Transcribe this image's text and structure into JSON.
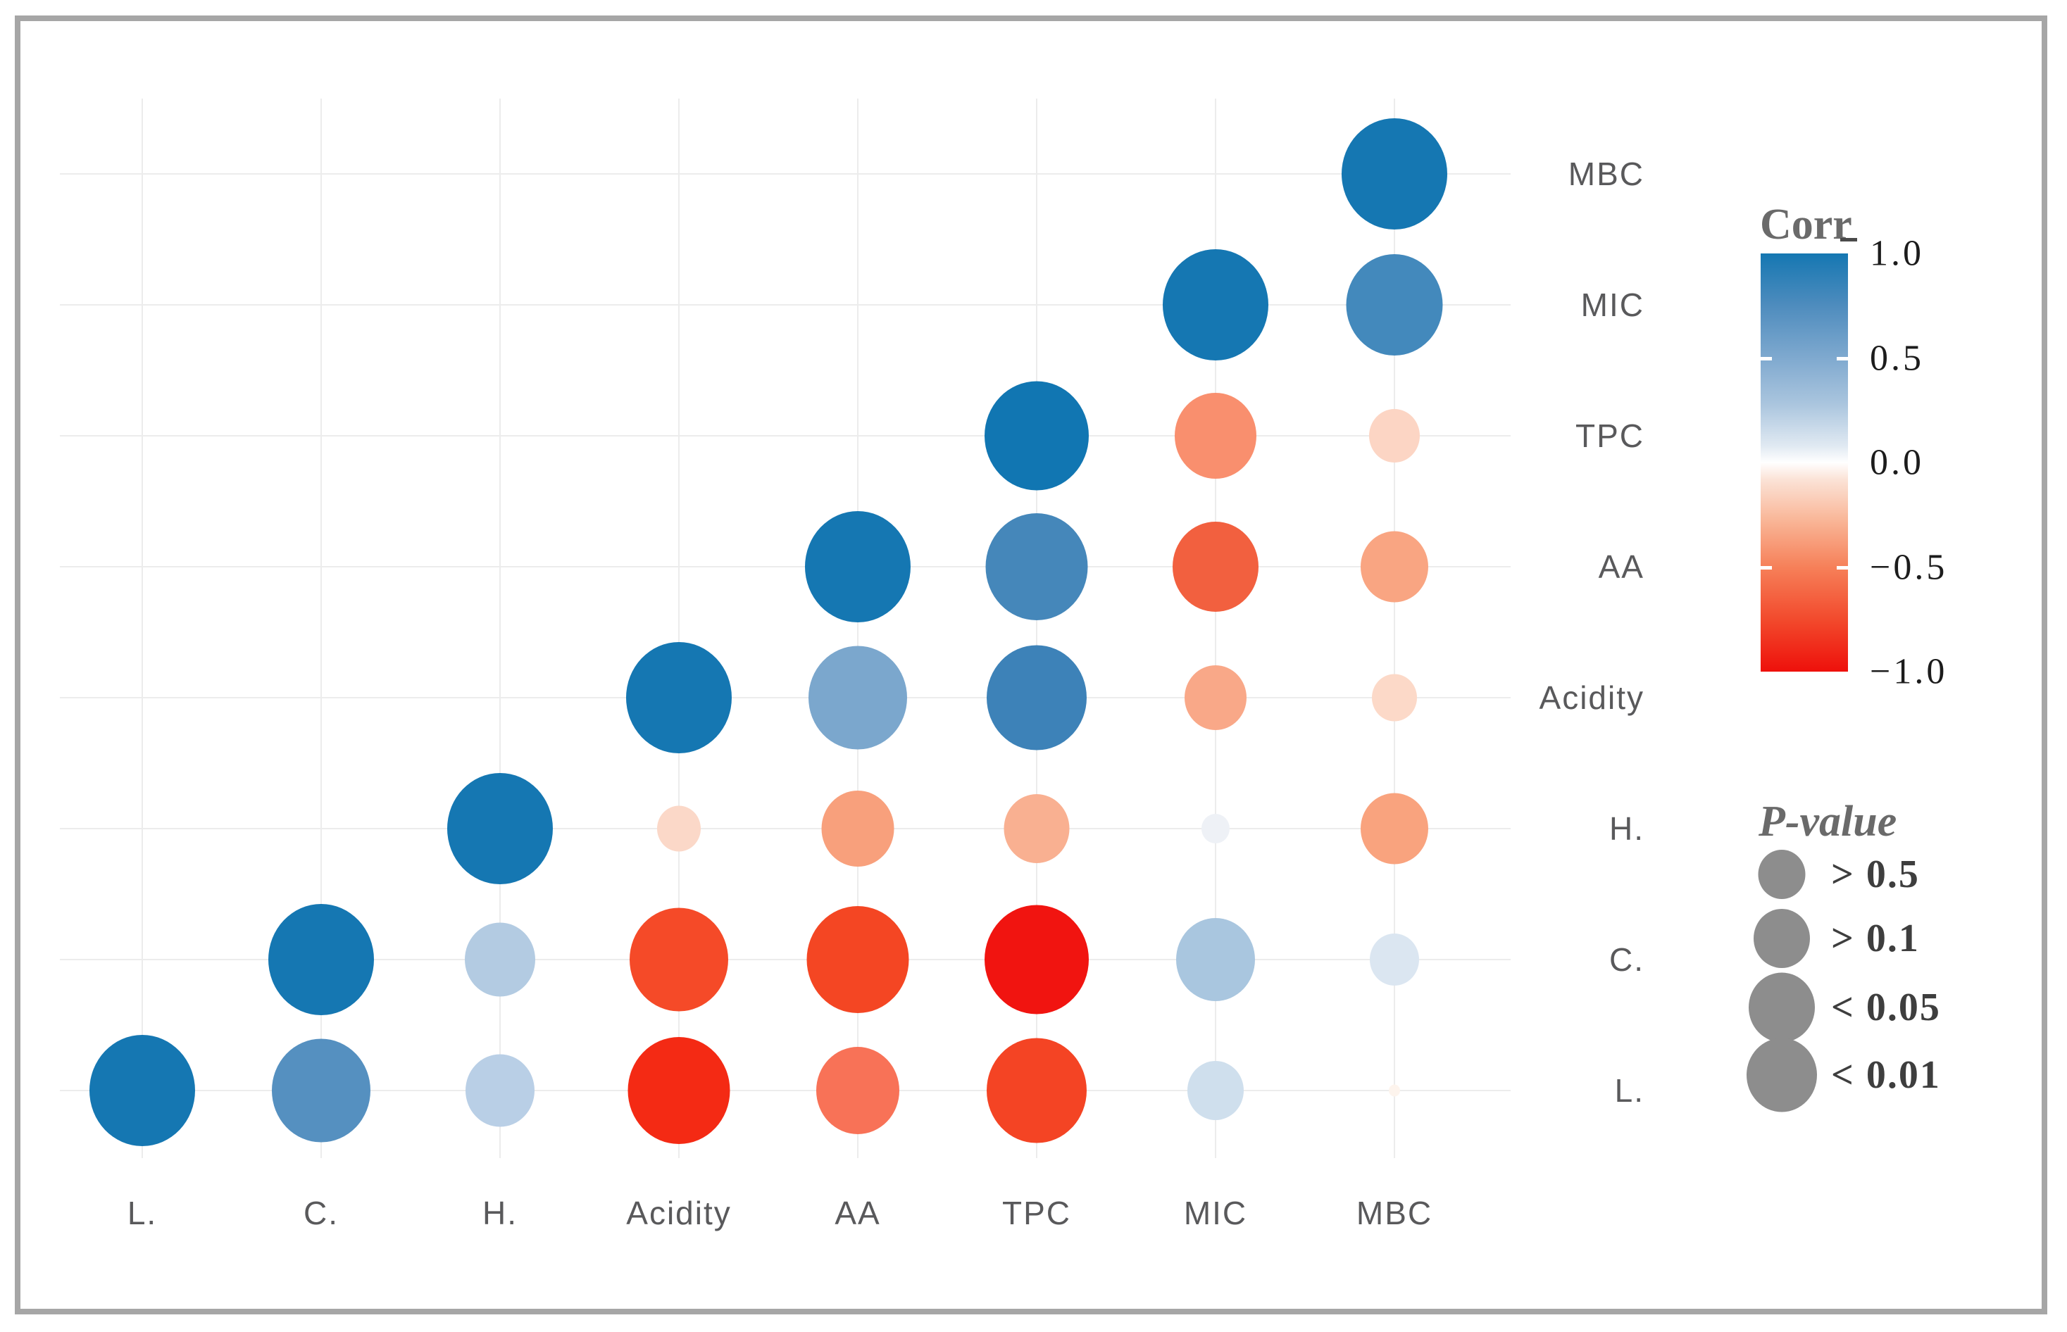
{
  "frame": {
    "border_color": "#a6a6a6"
  },
  "axis": {
    "row_labels": [
      "MBC",
      "MIC",
      "TPC",
      "AA",
      "Acidity",
      "H.",
      "C.",
      "L."
    ],
    "col_labels": [
      "L.",
      "C.",
      "H.",
      "Acidity",
      "AA",
      "TPC",
      "MIC",
      "MBC"
    ],
    "label_color": "#59595b"
  },
  "chart_data": {
    "type": "correlation_bubble_matrix",
    "title": "",
    "variables": [
      "L.",
      "C.",
      "H.",
      "Acidity",
      "AA",
      "TPC",
      "MIC",
      "MBC"
    ],
    "triangle": "lower",
    "encoding": {
      "color": "correlation (-1 red to +1 blue)",
      "size": "p-value (larger = more significant)"
    },
    "cells": [
      {
        "row": "MBC",
        "col": "MBC",
        "r": 1.0,
        "p": "<0.01",
        "color": "#1577b2",
        "size": 150
      },
      {
        "row": "MIC",
        "col": "MIC",
        "r": 1.0,
        "p": "<0.01",
        "color": "#1577b2",
        "size": 150
      },
      {
        "row": "MIC",
        "col": "MBC",
        "r": 0.78,
        "p": "<0.01",
        "color": "#4389bc",
        "size": 137
      },
      {
        "row": "TPC",
        "col": "TPC",
        "r": 1.0,
        "p": "<0.01",
        "color": "#1176b2",
        "size": 148
      },
      {
        "row": "TPC",
        "col": "MIC",
        "r": -0.5,
        "p": "<0.05",
        "color": "#f98f6e",
        "size": 116
      },
      {
        "row": "TPC",
        "col": "MBC",
        "r": -0.15,
        "p": ">0.5",
        "color": "#fcd5c4",
        "size": 72
      },
      {
        "row": "AA",
        "col": "AA",
        "r": 1.0,
        "p": "<0.01",
        "color": "#1577b2",
        "size": 150
      },
      {
        "row": "AA",
        "col": "TPC",
        "r": 0.7,
        "p": "<0.01",
        "color": "#4587ba",
        "size": 145
      },
      {
        "row": "AA",
        "col": "MIC",
        "r": -0.65,
        "p": "<0.05",
        "color": "#f2603f",
        "size": 122
      },
      {
        "row": "AA",
        "col": "MBC",
        "r": -0.4,
        "p": ">0.1",
        "color": "#f9a582",
        "size": 96
      },
      {
        "row": "Acidity",
        "col": "Acidity",
        "r": 1.0,
        "p": "<0.01",
        "color": "#1577b2",
        "size": 150
      },
      {
        "row": "Acidity",
        "col": "AA",
        "r": 0.6,
        "p": "<0.01",
        "color": "#7ba7cd",
        "size": 140
      },
      {
        "row": "Acidity",
        "col": "TPC",
        "r": 0.72,
        "p": "<0.01",
        "color": "#3d82b8",
        "size": 142
      },
      {
        "row": "Acidity",
        "col": "MIC",
        "r": -0.35,
        "p": ">0.1",
        "color": "#f9a888",
        "size": 88
      },
      {
        "row": "Acidity",
        "col": "MBC",
        "r": -0.15,
        "p": ">0.5",
        "color": "#fcd9c8",
        "size": 64
      },
      {
        "row": "H.",
        "col": "H.",
        "r": 1.0,
        "p": "<0.01",
        "color": "#1577b2",
        "size": 150
      },
      {
        "row": "H.",
        "col": "Acidity",
        "r": -0.15,
        "p": ">0.5",
        "color": "#fbd8c8",
        "size": 62
      },
      {
        "row": "H.",
        "col": "AA",
        "r": -0.42,
        "p": ">0.1",
        "color": "#f8a07c",
        "size": 103
      },
      {
        "row": "H.",
        "col": "TPC",
        "r": -0.33,
        "p": ">0.1",
        "color": "#f9b091",
        "size": 93
      },
      {
        "row": "H.",
        "col": "MIC",
        "r": 0.06,
        "p": ">0.5",
        "color": "#eef1f6",
        "size": 40
      },
      {
        "row": "H.",
        "col": "MBC",
        "r": -0.4,
        "p": ">0.1",
        "color": "#f9a37e",
        "size": 96
      },
      {
        "row": "C.",
        "col": "C.",
        "r": 1.0,
        "p": "<0.01",
        "color": "#1577b2",
        "size": 150
      },
      {
        "row": "C.",
        "col": "H.",
        "r": 0.3,
        "p": ">0.1",
        "color": "#b3cbe2",
        "size": 100
      },
      {
        "row": "C.",
        "col": "Acidity",
        "r": -0.78,
        "p": "<0.01",
        "color": "#f54a28",
        "size": 140
      },
      {
        "row": "C.",
        "col": "AA",
        "r": -0.8,
        "p": "<0.01",
        "color": "#f44623",
        "size": 145
      },
      {
        "row": "C.",
        "col": "TPC",
        "r": -0.97,
        "p": "<0.01",
        "color": "#f11410",
        "size": 148
      },
      {
        "row": "C.",
        "col": "MIC",
        "r": 0.38,
        "p": "<0.05",
        "color": "#a9c6df",
        "size": 112
      },
      {
        "row": "C.",
        "col": "MBC",
        "r": 0.15,
        "p": ">0.5",
        "color": "#dbe6f1",
        "size": 70
      },
      {
        "row": "L.",
        "col": "L.",
        "r": 1.0,
        "p": "<0.01",
        "color": "#1577b2",
        "size": 150
      },
      {
        "row": "L.",
        "col": "C.",
        "r": 0.7,
        "p": "<0.01",
        "color": "#5590c0",
        "size": 140
      },
      {
        "row": "L.",
        "col": "H.",
        "r": 0.3,
        "p": ">0.1",
        "color": "#b9cfe6",
        "size": 98
      },
      {
        "row": "L.",
        "col": "Acidity",
        "r": -0.92,
        "p": "<0.01",
        "color": "#f42a14",
        "size": 145
      },
      {
        "row": "L.",
        "col": "AA",
        "r": -0.55,
        "p": "<0.05",
        "color": "#f87257",
        "size": 118
      },
      {
        "row": "L.",
        "col": "TPC",
        "r": -0.8,
        "p": "<0.01",
        "color": "#f44424",
        "size": 142
      },
      {
        "row": "L.",
        "col": "MIC",
        "r": 0.18,
        "p": ">0.1",
        "color": "#cfdfed",
        "size": 80
      },
      {
        "row": "L.",
        "col": "MBC",
        "r": -0.03,
        "p": ">0.5",
        "color": "#fdf4ed",
        "size": 16
      }
    ],
    "color_legend": {
      "title": "Corr",
      "ticks": [
        "1.0",
        "0.5",
        "0.0",
        "−0.5",
        "−1.0"
      ],
      "tick_values": [
        1.0,
        0.5,
        0.0,
        -0.5,
        -1.0
      ],
      "range": [
        -1,
        1
      ],
      "gradient_stops": [
        {
          "at": 0.0,
          "color": "#1577b2"
        },
        {
          "at": 0.12,
          "color": "#4c8bbd"
        },
        {
          "at": 0.25,
          "color": "#7fa9cf"
        },
        {
          "at": 0.36,
          "color": "#aac5de"
        },
        {
          "at": 0.46,
          "color": "#e0e9f2"
        },
        {
          "at": 0.5,
          "color": "#ffffff"
        },
        {
          "at": 0.54,
          "color": "#fbe3d7"
        },
        {
          "at": 0.64,
          "color": "#f9b596"
        },
        {
          "at": 0.75,
          "color": "#f68059"
        },
        {
          "at": 0.88,
          "color": "#f2482b"
        },
        {
          "at": 1.0,
          "color": "#ee100b"
        }
      ]
    },
    "size_legend": {
      "title": "P-value",
      "entries": [
        "> 0.5",
        "> 0.1",
        "< 0.05",
        "< 0.01"
      ],
      "diameters": [
        67,
        80,
        94,
        100
      ],
      "circle_color": "#8d8d8d",
      "label_color": "#3e3e3e",
      "title_color": "#6f6f6f"
    }
  }
}
